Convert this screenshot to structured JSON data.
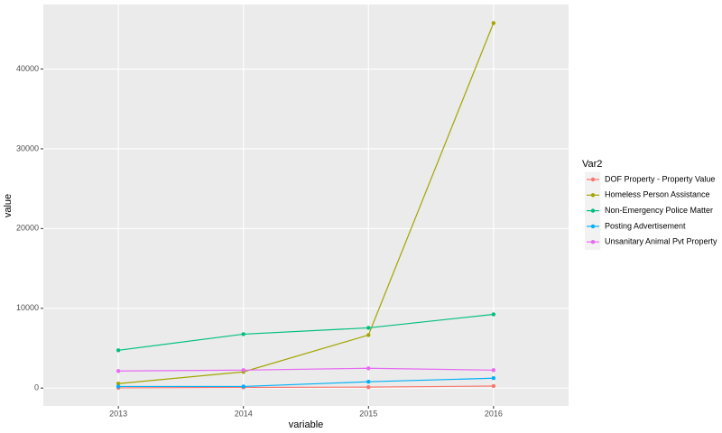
{
  "chart_data": {
    "type": "line",
    "x_label": "variable",
    "y_label": "value",
    "categories": [
      "2013",
      "2014",
      "2015",
      "2016"
    ],
    "series": [
      {
        "name": "DOF Property - Property Value",
        "color": "#F8766D",
        "values": [
          30,
          80,
          120,
          250
        ]
      },
      {
        "name": "Homeless Person Assistance",
        "color": "#A3A500",
        "values": [
          560,
          2030,
          6650,
          45770
        ]
      },
      {
        "name": "Non-Emergency Police Matter",
        "color": "#00BF7D",
        "values": [
          4740,
          6760,
          7550,
          9240
        ]
      },
      {
        "name": "Posting Advertisement",
        "color": "#00B0F6",
        "values": [
          200,
          200,
          790,
          1240
        ]
      },
      {
        "name": "Unsanitary Animal Pvt Property",
        "color": "#E76BF3",
        "values": [
          2140,
          2250,
          2480,
          2250
        ]
      }
    ],
    "ylim": [
      -2240,
      48090
    ],
    "yticks": [
      0,
      10000,
      20000,
      30000,
      40000
    ],
    "grid": true,
    "legend_title": "Var2",
    "legend_position": "right"
  }
}
